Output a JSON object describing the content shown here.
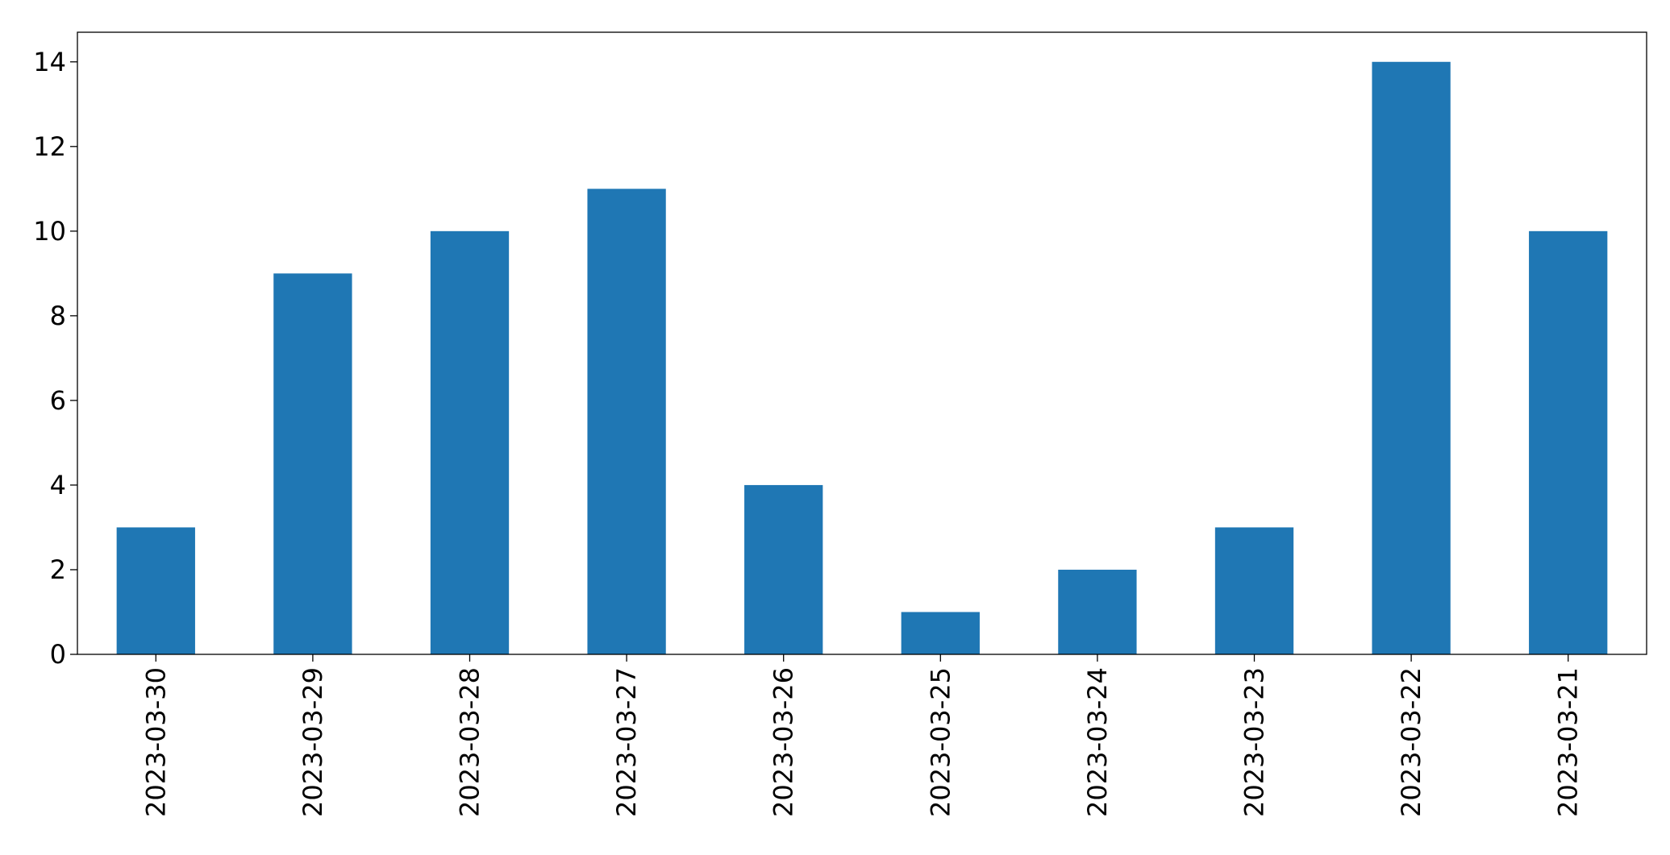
{
  "chart_data": {
    "type": "bar",
    "categories": [
      "2023-03-30",
      "2023-03-29",
      "2023-03-28",
      "2023-03-27",
      "2023-03-26",
      "2023-03-25",
      "2023-03-24",
      "2023-03-23",
      "2023-03-22",
      "2023-03-21"
    ],
    "values": [
      3,
      9,
      10,
      11,
      4,
      1,
      2,
      3,
      14,
      10
    ],
    "color": "#1f77b4",
    "ylim": [
      0,
      14.7
    ],
    "yticks": [
      0,
      2,
      4,
      6,
      8,
      10,
      12,
      14
    ],
    "grid": false
  }
}
